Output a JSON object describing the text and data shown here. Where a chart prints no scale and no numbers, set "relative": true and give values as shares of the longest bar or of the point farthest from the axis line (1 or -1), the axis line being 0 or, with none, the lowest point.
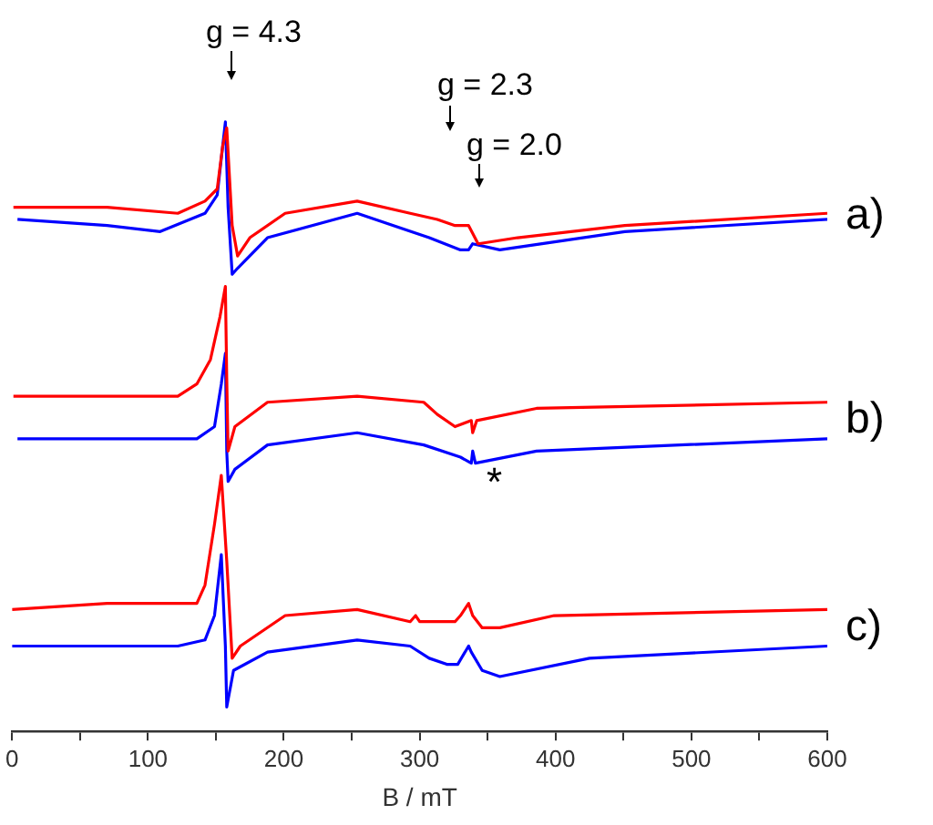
{
  "chart_data": {
    "type": "line",
    "relative": true,
    "xlabel": "B / mT",
    "xlim": [
      0,
      600
    ],
    "xticks": [
      0,
      {
        "value": 50,
        "label": null
      },
      100,
      {
        "value": 150,
        "label": null
      },
      200,
      {
        "value": 250,
        "label": null
      },
      300,
      {
        "value": 350,
        "label": null
      },
      400,
      {
        "value": 450,
        "label": null
      },
      500,
      {
        "value": 550,
        "label": null
      },
      600
    ],
    "marker": "none",
    "line_style": "solid",
    "legend": false,
    "grid": false,
    "tick_labels": "x",
    "series": [
      {
        "color": "#ff0000",
        "x": [
          1,
          70,
          122,
          142,
          151,
          155,
          158,
          162,
          166,
          175,
          201,
          254,
          293,
          313,
          326,
          336,
          343,
          372,
          451,
          600
        ],
        "values": [
          0.86,
          0.86,
          0.85,
          0.87,
          0.89,
          0.96,
          0.99,
          0.83,
          0.78,
          0.81,
          0.85,
          0.87,
          0.85,
          0.84,
          0.83,
          0.83,
          0.8,
          0.81,
          0.83,
          0.85
        ]
      },
      {
        "color": "#0000ff",
        "x": [
          4,
          70,
          109,
          142,
          151,
          157,
          159,
          162,
          166,
          188,
          254,
          307,
          330,
          336,
          339,
          359,
          451,
          600
        ],
        "values": [
          0.84,
          0.83,
          0.82,
          0.85,
          0.88,
          1,
          0.86,
          0.75,
          0.76,
          0.81,
          0.85,
          0.81,
          0.79,
          0.79,
          0.8,
          0.79,
          0.82,
          0.84
        ]
      },
      {
        "color": "#ff0000",
        "x": [
          1,
          122,
          136,
          146,
          153,
          157,
          158,
          159,
          164,
          188,
          254,
          303,
          313,
          326,
          338,
          339,
          342,
          386,
          600
        ],
        "values": [
          0.55,
          0.55,
          0.57,
          0.61,
          0.68,
          0.73,
          0.58,
          0.46,
          0.5,
          0.54,
          0.55,
          0.54,
          0.52,
          0.5,
          0.51,
          0.49,
          0.51,
          0.53,
          0.54
        ]
      },
      {
        "color": "#0000ff",
        "x": [
          4,
          136,
          149,
          154,
          157,
          158,
          159,
          164,
          188,
          254,
          303,
          330,
          338,
          339,
          341,
          386,
          600
        ],
        "values": [
          0.48,
          0.48,
          0.5,
          0.57,
          0.62,
          0.46,
          0.41,
          0.43,
          0.47,
          0.49,
          0.47,
          0.45,
          0.44,
          0.46,
          0.44,
          0.46,
          0.48
        ]
      },
      {
        "color": "#ff0000",
        "x": [
          0,
          70,
          136,
          142,
          149,
          154,
          158,
          162,
          168,
          201,
          254,
          293,
          297,
          300,
          326,
          330,
          336,
          339,
          346,
          359,
          399,
          600
        ],
        "values": [
          0.2,
          0.21,
          0.21,
          0.24,
          0.34,
          0.42,
          0.28,
          0.12,
          0.14,
          0.19,
          0.2,
          0.18,
          0.19,
          0.18,
          0.18,
          0.19,
          0.21,
          0.19,
          0.17,
          0.17,
          0.19,
          0.2
        ]
      },
      {
        "color": "#0000ff",
        "x": [
          0,
          122,
          142,
          149,
          154,
          157,
          158,
          163,
          188,
          254,
          293,
          307,
          320,
          328,
          336,
          338,
          346,
          359,
          425,
          600
        ],
        "values": [
          0.14,
          0.14,
          0.15,
          0.19,
          0.29,
          0.14,
          0.04,
          0.1,
          0.13,
          0.15,
          0.14,
          0.12,
          0.11,
          0.11,
          0.14,
          0.13,
          0.1,
          0.09,
          0.12,
          0.14
        ]
      }
    ],
    "annotations": [
      "g = 4.3",
      "g = 2.3",
      "g = 2.0",
      "*",
      "a)",
      "b)",
      "c)"
    ]
  }
}
